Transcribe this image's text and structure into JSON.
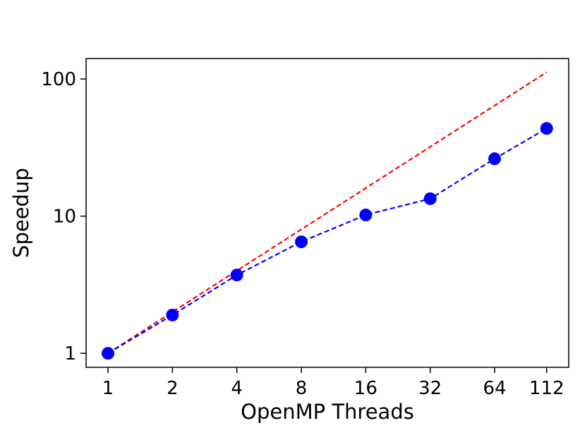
{
  "chart_data": {
    "type": "line",
    "x_label": "OpenMP Threads",
    "y_label": "Speedup",
    "x": [
      1,
      2,
      4,
      8,
      16,
      32,
      64,
      112
    ],
    "series": [
      {
        "color": "#ff0000",
        "values": [
          1,
          2,
          4,
          8,
          16,
          32,
          64,
          112
        ],
        "markers": false,
        "dashed": true
      },
      {
        "color": "#0000ff",
        "values": [
          1,
          1.9,
          3.72,
          6.5,
          10.2,
          13.4,
          26.2,
          43.6
        ],
        "markers": true,
        "dashed": true
      }
    ],
    "xlim": [
      0.79,
      142
    ],
    "ylim": [
      0.79,
      141
    ],
    "xticks": [
      1,
      2,
      4,
      8,
      16,
      32,
      64,
      112
    ],
    "yticks": [
      1,
      10,
      100
    ],
    "xlog": true,
    "ylog": true,
    "grid": false
  }
}
